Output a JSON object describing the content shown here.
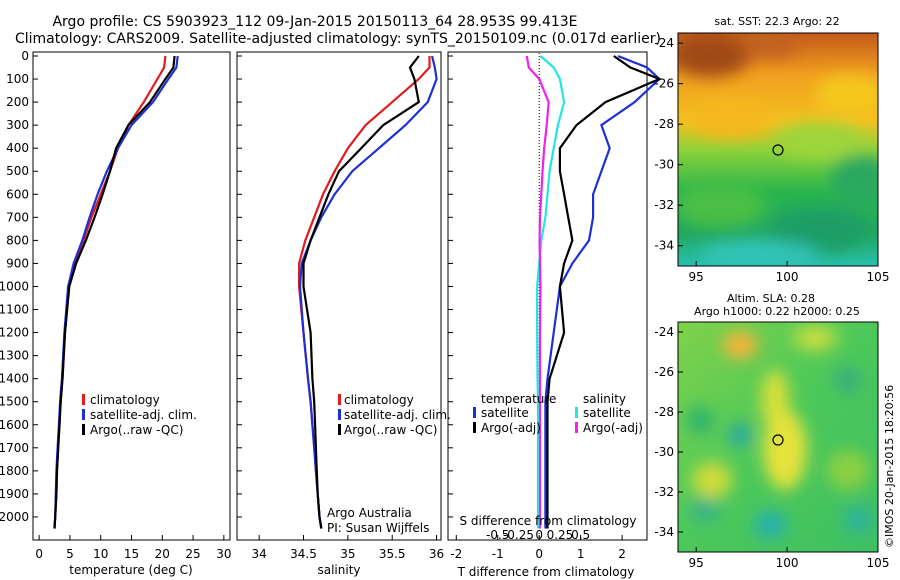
{
  "header": {
    "title1": "Argo profile: CS 5903923_112 09-Jan-2015 20150113_64 28.953S 99.413E",
    "title2": "Climatology: CARS2009. Satellite-adjusted climatology: synTS_20150109.nc (0.017d earlier)"
  },
  "depth_ticks": [
    "0",
    "100",
    "200",
    "300",
    "400",
    "500",
    "600",
    "700",
    "800",
    "900",
    "1000",
    "1100",
    "1200",
    "1300",
    "1400",
    "1500",
    "1600",
    "1700",
    "1800",
    "1900",
    "2000"
  ],
  "colors": {
    "climatology": "#e41a1c",
    "satellite": "#1f2fd6",
    "argo": "#000000",
    "sal_sat": "#22e6e6",
    "sal_argo": "#ee22ee"
  },
  "panel1": {
    "xlabel": "temperature (deg C)",
    "xticks": [
      "0",
      "5",
      "10",
      "15",
      "20",
      "25",
      "30"
    ],
    "legend": [
      "climatology",
      "satellite-adj. clim.",
      "Argo(..raw -QC)"
    ]
  },
  "panel2": {
    "xlabel": "salinity",
    "xticks": [
      "34",
      "34.5",
      "35",
      "35.5",
      "36"
    ],
    "legend": [
      "climatology",
      "satellite-adj. clim.",
      "Argo(..raw -QC)"
    ],
    "note1": "Argo Australia",
    "note2": "PI: Susan Wijffels"
  },
  "panel3": {
    "xlabel": "T difference from climatology",
    "xticks": [
      "-2",
      "-1",
      "0",
      "1",
      "2"
    ],
    "s_label": "S difference from climatology",
    "s_ticks": [
      "-0.5",
      "-0.25",
      "0",
      "0.25",
      "0.5"
    ],
    "legend_t_head": "temperature",
    "legend_s_head": "salinity",
    "legend_t": [
      "satellite",
      "Argo(-adj)"
    ],
    "legend_s": [
      "satellite",
      "Argo(-adj)"
    ]
  },
  "map1": {
    "title": "sat. SST: 22.3  Argo: 22",
    "yticks": [
      "-24",
      "-26",
      "-28",
      "-30",
      "-32",
      "-34"
    ],
    "xticks": [
      "95",
      "100",
      "105"
    ]
  },
  "map2": {
    "title1": "Altim. SLA: 0.28",
    "title2": "Argo h1000: 0.22  h2000: 0.25",
    "yticks": [
      "-24",
      "-26",
      "-28",
      "-30",
      "-32",
      "-34"
    ],
    "xticks": [
      "95",
      "100",
      "105"
    ],
    "stamp": "©IMOS 20-Jan-2015 18:20:56"
  },
  "chart_data": [
    {
      "type": "line",
      "xlabel": "temperature (deg C)",
      "ylabel": "",
      "xlim": [
        -1,
        31
      ],
      "ylim": [
        2100,
        0
      ],
      "series": [
        {
          "name": "climatology",
          "x": [
            20.5,
            20.3,
            19.2,
            17.0,
            14.5,
            12.8,
            11.5,
            10.0,
            8.5,
            7.2,
            5.8,
            4.8,
            4.2,
            3.8,
            3.5,
            3.3,
            3.1,
            2.9,
            2.8,
            2.6,
            2.5
          ],
          "y": [
            0,
            50,
            100,
            200,
            300,
            400,
            500,
            600,
            700,
            800,
            900,
            1000,
            1200,
            1400,
            1500,
            1600,
            1700,
            1800,
            1900,
            2000,
            2050
          ]
        },
        {
          "name": "satellite-adj. clim.",
          "x": [
            22.5,
            22.3,
            21.0,
            18.5,
            15.0,
            12.8,
            11.0,
            9.5,
            8.2,
            7.0,
            5.6,
            4.7,
            4.1,
            3.7,
            3.4,
            3.2,
            3.0,
            2.8,
            2.7,
            2.6,
            2.5
          ],
          "y": [
            0,
            50,
            100,
            200,
            300,
            400,
            500,
            600,
            700,
            800,
            900,
            1000,
            1200,
            1400,
            1500,
            1600,
            1700,
            1800,
            1900,
            2000,
            2050
          ]
        },
        {
          "name": "Argo(..raw -QC)",
          "x": [
            22.0,
            21.8,
            20.5,
            18.0,
            14.5,
            12.5,
            11.5,
            10.3,
            9.0,
            7.6,
            6.0,
            4.9,
            4.2,
            3.8,
            3.5,
            3.3,
            3.1,
            2.9,
            2.8,
            2.6,
            2.5
          ],
          "y": [
            0,
            50,
            100,
            200,
            300,
            400,
            500,
            600,
            700,
            800,
            900,
            1000,
            1200,
            1400,
            1500,
            1600,
            1700,
            1800,
            1900,
            2000,
            2050
          ]
        }
      ]
    },
    {
      "type": "line",
      "xlabel": "salinity",
      "ylabel": "",
      "xlim": [
        33.75,
        36.05
      ],
      "ylim": [
        2100,
        0
      ],
      "series": [
        {
          "name": "climatology",
          "x": [
            35.92,
            35.92,
            35.8,
            35.5,
            35.2,
            35.0,
            34.85,
            34.72,
            34.62,
            34.52,
            34.45,
            34.45,
            34.5,
            34.55,
            34.58,
            34.6,
            34.62,
            34.64,
            34.66,
            34.68,
            34.7
          ],
          "y": [
            0,
            50,
            100,
            200,
            300,
            400,
            500,
            600,
            700,
            800,
            900,
            1000,
            1200,
            1400,
            1500,
            1600,
            1700,
            1800,
            1900,
            2000,
            2050
          ]
        },
        {
          "name": "satellite-adj. clim.",
          "x": [
            35.95,
            35.98,
            36.0,
            35.9,
            35.65,
            35.35,
            35.05,
            34.85,
            34.7,
            34.58,
            34.48,
            34.46,
            34.5,
            34.55,
            34.58,
            34.6,
            34.62,
            34.64,
            34.66,
            34.68,
            34.7
          ],
          "y": [
            0,
            50,
            100,
            200,
            300,
            400,
            500,
            600,
            700,
            800,
            900,
            1000,
            1200,
            1400,
            1500,
            1600,
            1700,
            1800,
            1900,
            2000,
            2050
          ]
        },
        {
          "name": "Argo(..raw -QC)",
          "x": [
            35.8,
            35.7,
            35.75,
            35.8,
            35.4,
            35.15,
            34.9,
            34.78,
            34.68,
            34.58,
            34.5,
            34.5,
            34.58,
            34.6,
            34.62,
            34.63,
            34.64,
            34.65,
            34.66,
            34.68,
            34.7
          ],
          "y": [
            0,
            50,
            100,
            200,
            300,
            400,
            500,
            600,
            700,
            800,
            900,
            1000,
            1200,
            1400,
            1500,
            1600,
            1700,
            1800,
            1900,
            2000,
            2050
          ]
        }
      ]
    },
    {
      "type": "line",
      "xlabel": "T difference from climatology",
      "ylabel": "",
      "xlim": [
        -2.2,
        2.6
      ],
      "ylim": [
        2100,
        0
      ],
      "series": [
        {
          "name": "temperature satellite",
          "x": [
            1.9,
            2.6,
            2.9,
            2.3,
            1.5,
            1.7,
            1.5,
            1.3,
            1.3,
            1.2,
            0.8,
            0.5,
            0.35,
            0.2,
            0.15,
            0.15,
            0.15,
            0.15,
            0.15,
            0.15,
            0.15
          ],
          "y": [
            0,
            50,
            100,
            200,
            300,
            400,
            500,
            600,
            700,
            800,
            900,
            1000,
            1200,
            1400,
            1500,
            1600,
            1700,
            1800,
            1900,
            2000,
            2050
          ]
        },
        {
          "name": "temperature Argo(-adj)",
          "x": [
            1.8,
            2.2,
            2.9,
            1.6,
            0.9,
            0.5,
            0.5,
            0.6,
            0.7,
            0.8,
            0.6,
            0.5,
            0.6,
            0.25,
            0.2,
            0.2,
            0.2,
            0.2,
            0.2,
            0.2,
            0.2
          ],
          "y": [
            0,
            50,
            100,
            200,
            300,
            400,
            500,
            600,
            700,
            800,
            900,
            1000,
            1200,
            1400,
            1500,
            1600,
            1700,
            1800,
            1900,
            2000,
            2050
          ]
        },
        {
          "name": "salinity satellite",
          "x": [
            0.03,
            0.35,
            0.5,
            0.6,
            0.45,
            0.35,
            0.25,
            0.2,
            0.15,
            0.05,
            0.0,
            -0.05,
            -0.05,
            -0.04,
            -0.03,
            -0.03,
            -0.03,
            -0.03,
            -0.03,
            -0.03,
            -0.03
          ],
          "y": [
            0,
            50,
            100,
            200,
            300,
            400,
            500,
            600,
            700,
            800,
            900,
            1000,
            1200,
            1400,
            1500,
            1600,
            1700,
            1800,
            1900,
            2000,
            2050
          ]
        },
        {
          "name": "salinity Argo(-adj)",
          "x": [
            -0.3,
            -0.25,
            0.0,
            0.23,
            0.18,
            0.12,
            0.08,
            0.05,
            0.02,
            0.01,
            0.02,
            0.03,
            0.02,
            0.02,
            0.02,
            0.02,
            0.02,
            0.02,
            0.02,
            0.02,
            0.02
          ],
          "y": [
            0,
            50,
            100,
            200,
            300,
            400,
            500,
            600,
            700,
            800,
            900,
            1000,
            1200,
            1400,
            1500,
            1600,
            1700,
            1800,
            1900,
            2000,
            2050
          ]
        }
      ]
    }
  ]
}
